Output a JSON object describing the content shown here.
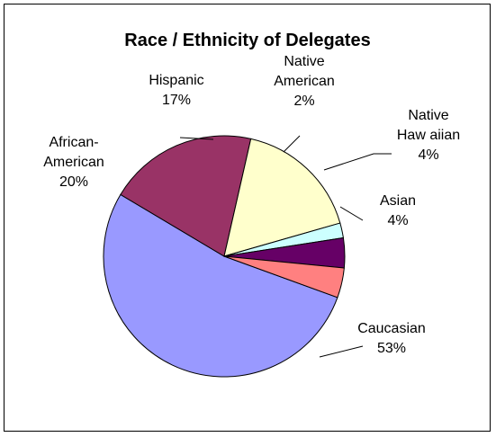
{
  "chart_data": {
    "type": "pie",
    "title": "Race / Ethnicity of Delegates",
    "slices": [
      {
        "name": "Caucasian",
        "value": 53,
        "label_lines": [
          "Caucasian",
          "53%"
        ],
        "color": "#9999ff"
      },
      {
        "name": "African-American",
        "value": 20,
        "label_lines": [
          "African-",
          "American",
          "20%"
        ],
        "color": "#993366"
      },
      {
        "name": "Hispanic",
        "value": 17,
        "label_lines": [
          "Hispanic",
          "17%"
        ],
        "color": "#ffffcc"
      },
      {
        "name": "Native American",
        "value": 2,
        "label_lines": [
          "Native",
          "American",
          "2%"
        ],
        "color": "#ccffff"
      },
      {
        "name": "Native Hawaiian",
        "value": 4,
        "label_lines": [
          "Native",
          "Haw aiian",
          "4%"
        ],
        "color": "#660066"
      },
      {
        "name": "Asian",
        "value": 4,
        "label_lines": [
          "Asian",
          "4%"
        ],
        "color": "#ff8080"
      }
    ]
  }
}
